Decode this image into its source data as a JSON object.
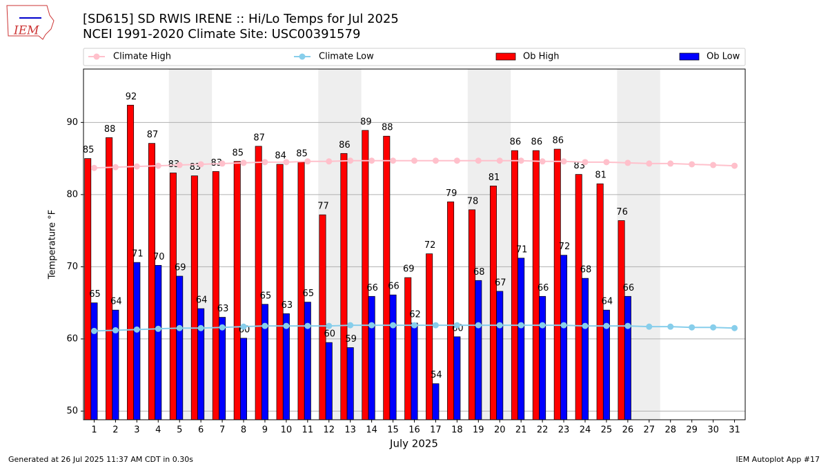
{
  "chart_data": {
    "type": "bar",
    "logo_text": "IEM",
    "title": "[SD615] SD RWIS IRENE :: Hi/Lo Temps for Jul 2025",
    "subtitle": "NCEI 1991-2020 Climate Site: USC00391579",
    "xlabel": "July 2025",
    "ylabel": "Temperature °F",
    "footer_left": "Generated at 26 Jul 2025 11:37 AM CDT in 0.30s",
    "footer_right": "IEM Autoplot App #17",
    "categories": [
      "1",
      "2",
      "3",
      "4",
      "5",
      "6",
      "7",
      "8",
      "9",
      "10",
      "11",
      "12",
      "13",
      "14",
      "15",
      "16",
      "17",
      "18",
      "19",
      "20",
      "21",
      "22",
      "23",
      "24",
      "25",
      "26",
      "27",
      "28",
      "29",
      "30",
      "31"
    ],
    "shaded_categories": [
      "5",
      "6",
      "12",
      "13",
      "19",
      "20",
      "26",
      "27"
    ],
    "ylim": [
      48.8,
      97.4
    ],
    "yticks": [
      50,
      60,
      70,
      80,
      90
    ],
    "grid": true,
    "legend": "top",
    "series": [
      {
        "name": "Climate High",
        "type": "line",
        "color": "#ffc0cb",
        "values": [
          83.7,
          83.8,
          83.9,
          84.0,
          84.1,
          84.2,
          84.3,
          84.4,
          84.5,
          84.5,
          84.6,
          84.6,
          84.7,
          84.7,
          84.7,
          84.7,
          84.7,
          84.7,
          84.7,
          84.7,
          84.7,
          84.6,
          84.6,
          84.5,
          84.5,
          84.4,
          84.3,
          84.3,
          84.2,
          84.1,
          84.0
        ]
      },
      {
        "name": "Climate Low",
        "type": "line",
        "color": "#87ceeb",
        "values": [
          61.1,
          61.2,
          61.3,
          61.4,
          61.5,
          61.5,
          61.6,
          61.7,
          61.8,
          61.8,
          61.8,
          61.8,
          61.9,
          61.9,
          61.9,
          61.9,
          61.9,
          61.9,
          61.9,
          61.9,
          61.9,
          61.9,
          61.9,
          61.8,
          61.8,
          61.8,
          61.7,
          61.7,
          61.6,
          61.6,
          61.5
        ]
      },
      {
        "name": "Ob High",
        "type": "bar",
        "color": "#ff0000",
        "values": [
          85.0,
          87.9,
          92.4,
          87.1,
          83.0,
          82.6,
          83.2,
          84.6,
          86.7,
          84.2,
          84.5,
          77.2,
          85.7,
          88.9,
          88.1,
          68.5,
          71.8,
          79.0,
          77.9,
          81.2,
          86.1,
          86.1,
          86.3,
          82.8,
          81.5,
          76.4,
          null,
          null,
          null,
          null,
          null
        ],
        "value_labels": [
          "85",
          "88",
          "92",
          "87",
          "83",
          "83",
          "83",
          "85",
          "87",
          "84",
          "85",
          "77",
          "86",
          "89",
          "88",
          "69",
          "72",
          "79",
          "78",
          "81",
          "86",
          "86",
          "86",
          "83",
          "81",
          "76",
          null,
          null,
          null,
          null,
          null
        ]
      },
      {
        "name": "Ob Low",
        "type": "bar",
        "color": "#0000ff",
        "values": [
          65.0,
          64.0,
          70.6,
          70.2,
          68.7,
          64.2,
          63.0,
          60.1,
          64.8,
          63.5,
          65.1,
          59.5,
          58.8,
          65.9,
          66.1,
          62.2,
          53.8,
          60.3,
          68.1,
          66.6,
          71.2,
          65.9,
          71.6,
          68.4,
          64.0,
          65.9,
          null,
          null,
          null,
          null,
          null
        ],
        "value_labels": [
          "65",
          "64",
          "71",
          "70",
          "69",
          "64",
          "63",
          "60",
          "65",
          "63",
          "65",
          "60",
          "59",
          "66",
          "66",
          "62",
          "54",
          "60",
          "68",
          "67",
          "71",
          "66",
          "72",
          "68",
          "64",
          "66",
          null,
          null,
          null,
          null,
          null
        ]
      }
    ]
  }
}
